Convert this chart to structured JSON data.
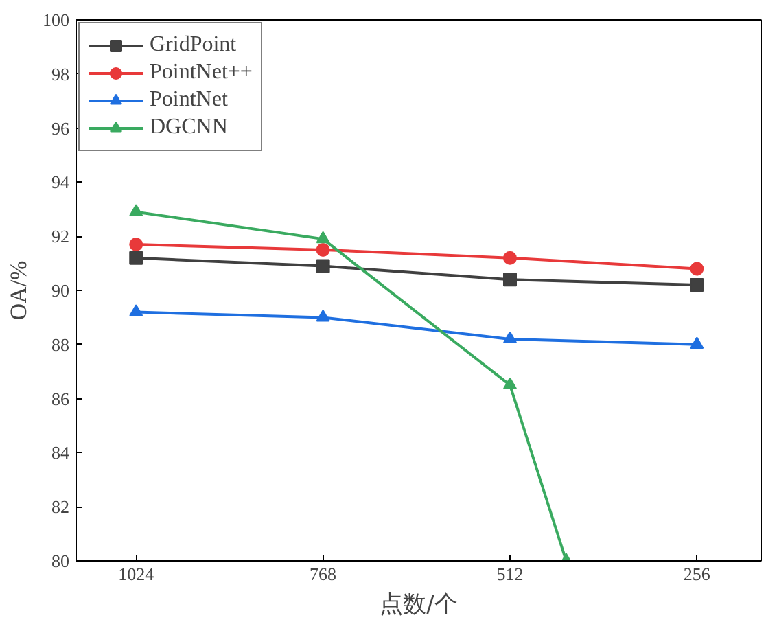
{
  "chart_data": {
    "type": "line",
    "xlabel": "点数/个",
    "ylabel": "OA/%",
    "x": [
      1024,
      768,
      512,
      256
    ],
    "xlim": [
      1106,
      168
    ],
    "xticks": [
      1024,
      768,
      512,
      256
    ],
    "ylim": [
      80,
      100
    ],
    "yticks": [
      80,
      82,
      84,
      86,
      88,
      90,
      92,
      94,
      96,
      98,
      100
    ],
    "series": [
      {
        "name": "GridPoint",
        "color": "#404040",
        "marker": "square",
        "values": [
          91.2,
          90.9,
          90.4,
          90.2
        ]
      },
      {
        "name": "PointNet++",
        "color": "#e8393a",
        "marker": "circle",
        "values": [
          91.7,
          91.5,
          91.2,
          90.8
        ]
      },
      {
        "name": "PointNet",
        "color": "#1f6fe0",
        "marker": "triangle",
        "values": [
          89.2,
          89.0,
          88.2,
          88.0
        ]
      },
      {
        "name": "DGCNN",
        "color": "#3aaa60",
        "marker": "triangle",
        "x": [
          1024,
          768,
          512,
          435
        ],
        "values": [
          92.9,
          91.9,
          86.5,
          80
        ]
      }
    ],
    "legend": "top left",
    "grid": false,
    "line_style": "solid"
  }
}
